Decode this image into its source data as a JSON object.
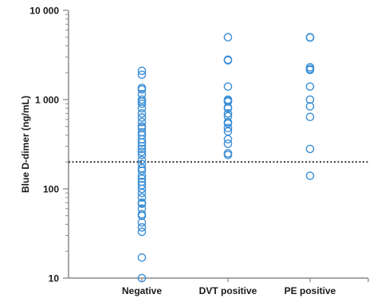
{
  "chart_data": {
    "type": "scatter",
    "ylabel": "Blue D-dimer (ng/mL)",
    "xlabel": "",
    "title": "",
    "y_scale": "log",
    "ylim": [
      10,
      10000
    ],
    "y_ticks": [
      {
        "value": 10,
        "label": "10"
      },
      {
        "value": 100,
        "label": "100"
      },
      {
        "value": 1000,
        "label": "1 000"
      },
      {
        "value": 10000,
        "label": "10 000"
      }
    ],
    "categories": [
      "Negative",
      "DVT positive",
      "PE positive"
    ],
    "threshold": {
      "value": 200,
      "style": "dotted"
    },
    "marker_color": "#3d8fd6",
    "axis_color": "#8c8c8c",
    "threshold_color": "#333333",
    "grid": false,
    "series": [
      {
        "category": "Negative",
        "values": [
          2100,
          1900,
          1350,
          1300,
          1150,
          1000,
          950,
          900,
          800,
          700,
          630,
          560,
          500,
          480,
          430,
          400,
          360,
          330,
          300,
          280,
          260,
          240,
          210,
          190,
          170,
          160,
          140,
          130,
          120,
          110,
          100,
          90,
          80,
          70,
          68,
          60,
          52,
          50,
          42,
          37,
          33,
          17,
          10
        ]
      },
      {
        "category": "DVT positive",
        "values": [
          5000,
          2800,
          2750,
          1400,
          1000,
          970,
          950,
          820,
          800,
          700,
          650,
          560,
          540,
          480,
          440,
          360,
          320,
          250,
          240
        ]
      },
      {
        "category": "PE positive",
        "values": [
          5000,
          4950,
          2300,
          2200,
          2150,
          1400,
          1000,
          840,
          640,
          280,
          140
        ]
      }
    ]
  }
}
